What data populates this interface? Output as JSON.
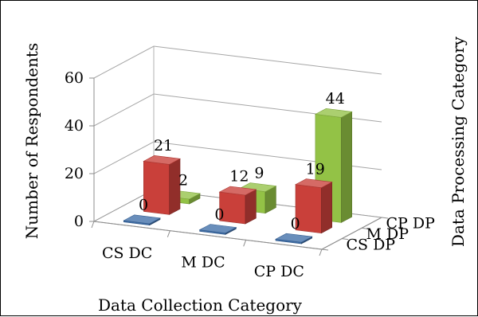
{
  "chart_data": {
    "type": "bar",
    "subtype": "3d-column",
    "categories": [
      "CS DC",
      "M DC",
      "CP DC"
    ],
    "depth_categories": [
      "CS DP",
      "M DP",
      "CP DP"
    ],
    "series": [
      {
        "name": "CS DP",
        "values": [
          0,
          0,
          0
        ],
        "color": "#3f6ea8"
      },
      {
        "name": "M DP",
        "values": [
          21,
          12,
          19
        ],
        "color": "#c9403a"
      },
      {
        "name": "CP DP",
        "values": [
          2,
          9,
          44
        ],
        "color": "#93c246"
      }
    ],
    "xlabel": "Data Collection Category",
    "ylabel": "Number of Respondents",
    "zlabel": "Data Processing Category",
    "yticks": [
      0,
      20,
      40,
      60
    ],
    "ylim": [
      0,
      60
    ],
    "grid": true,
    "legend": "none",
    "data_labels": true
  }
}
